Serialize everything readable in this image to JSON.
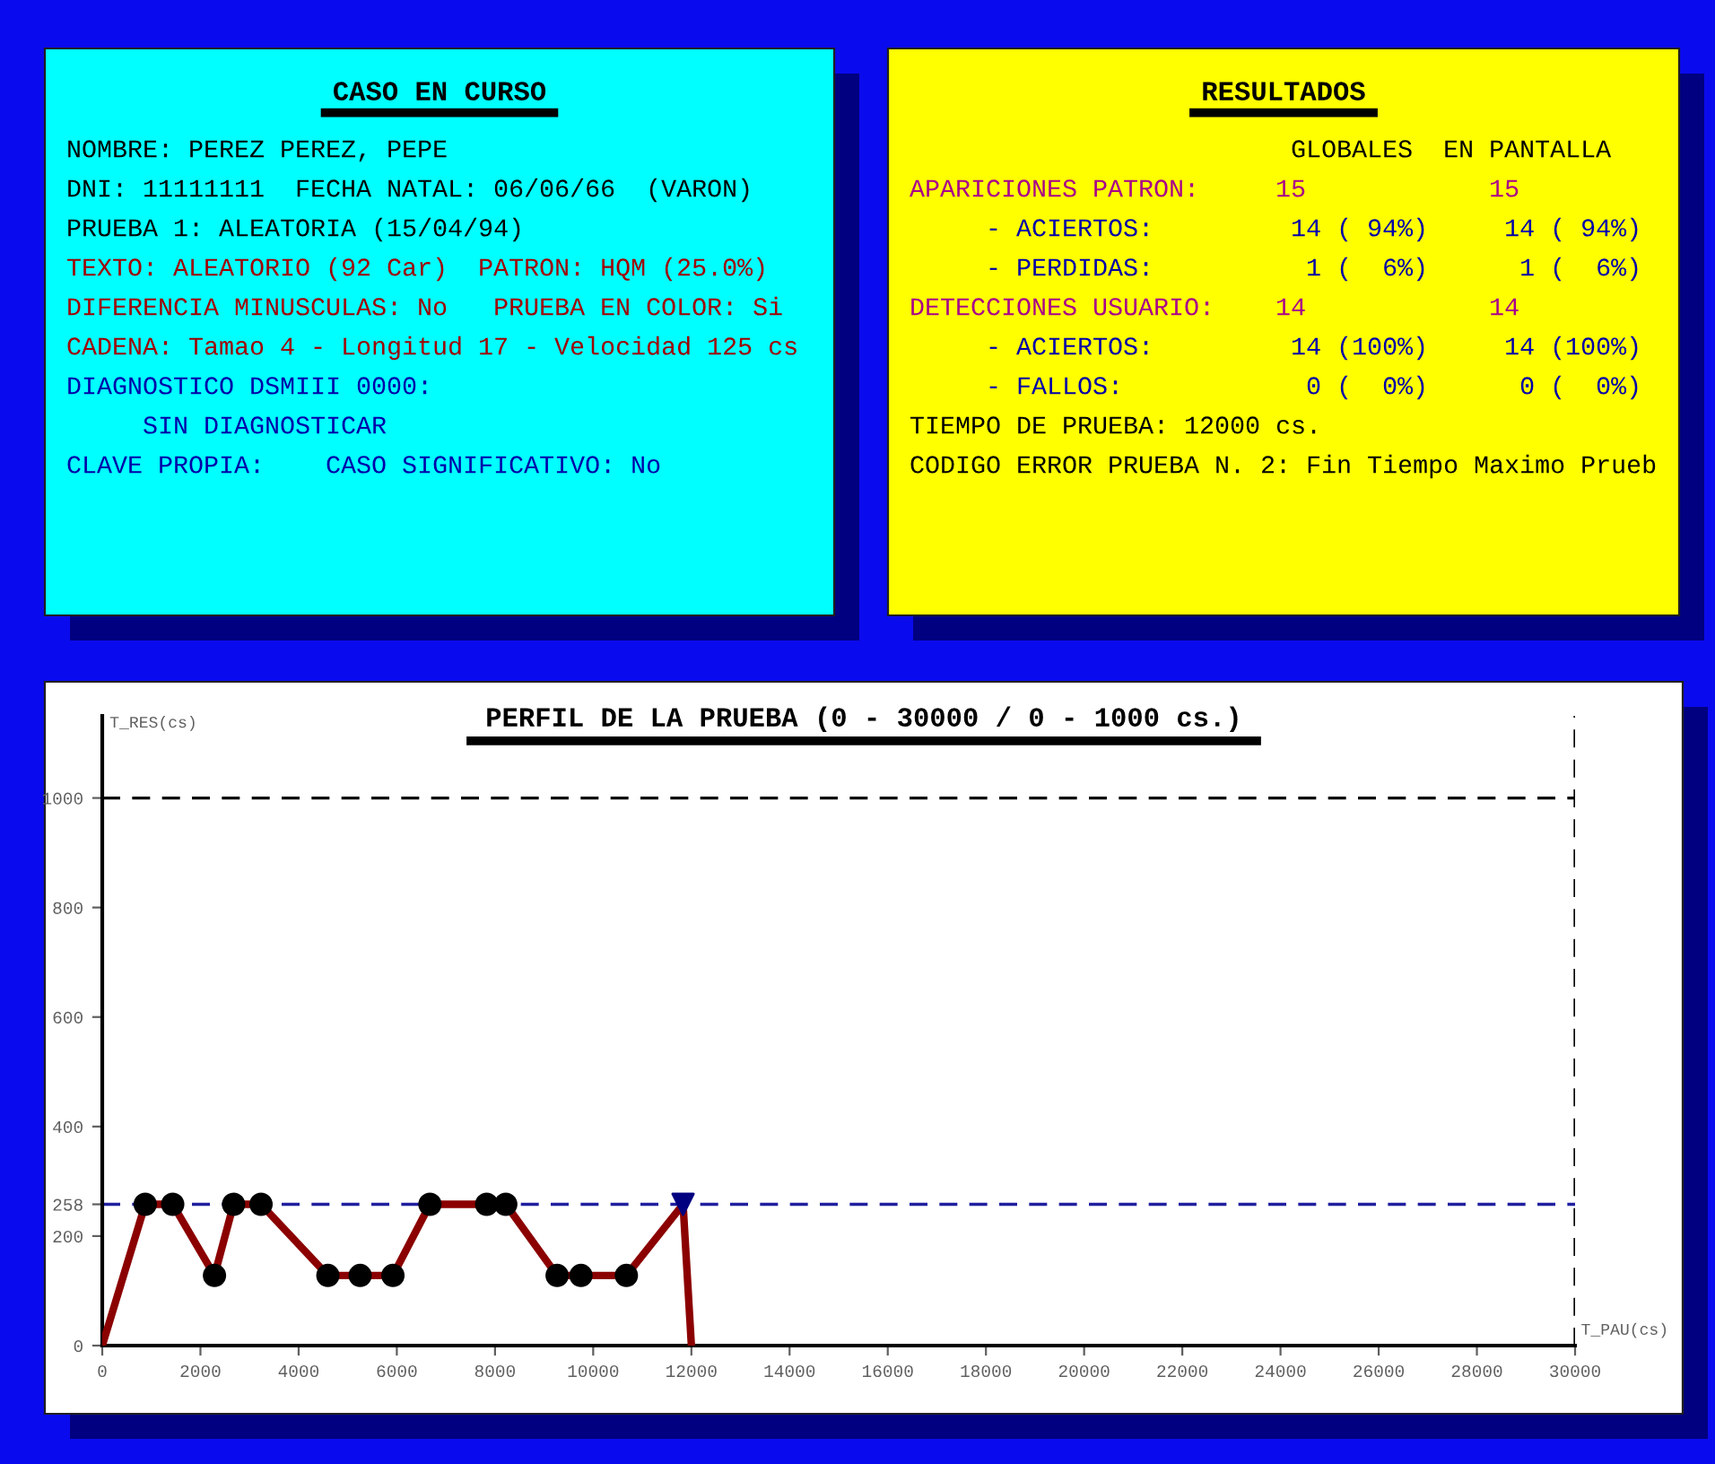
{
  "chart_data": [
    {
      "type": "other",
      "title": "CASO EN CURSO",
      "annotations": [
        "NOMBRE: PEREZ PEREZ, PEPE",
        "DNI: 11111111  FECHA NATAL: 06/06/66  (VARON)",
        "PRUEBA 1: ALEATORIA (15/04/94)",
        "TEXTO: ALEATORIO (92 Car)  PATRON: HQM (25.0%)",
        "DIFERENCIA MINUSCULAS: No   PRUEBA EN COLOR: Si",
        "CADENA: Tamao 4 - Longitud 17 - Velocidad 125 cs",
        "DIAGNOSTICO DSMIII 0000:",
        "     SIN DIAGNOSTICAR",
        "CLAVE PROPIA:    CASO SIGNIFICATIVO: No"
      ],
      "colors": [
        "#000000",
        "#000000",
        "#000000",
        "#a00000",
        "#a00000",
        "#a00000",
        "#0000a8",
        "#0000a8",
        "#0000a8"
      ]
    },
    {
      "type": "other",
      "title": "RESULTADOS",
      "annotations": [
        "                         GLOBALES  EN PANTALLA",
        "APARICIONES PATRON:     15            15",
        "     - ACIERTOS:         14 ( 94%)     14 ( 94%)",
        "     - PERDIDAS:          1 (  6%)      1 (  6%)",
        "DETECCIONES USUARIO:    14            14",
        "     - ACIERTOS:         14 (100%)     14 (100%)",
        "     - FALLOS:            0 (  0%)      0 (  0%)",
        "TIEMPO DE PRUEBA: 12000 cs.",
        "CODIGO ERROR PRUEBA N. 2: Fin Tiempo Maximo Prueb"
      ],
      "colors": [
        "#000000",
        "#a8008a",
        "#0000a8",
        "#0000a8",
        "#a8008a",
        "#0000a8",
        "#0000a8",
        "#000000",
        "#000000"
      ]
    },
    {
      "type": "line",
      "title": "PERFIL DE LA PRUEBA (0 - 30000 / 0 - 1000 cs.)",
      "xlabel": "T_PAU(cs)",
      "ylabel": "T_RES(cs)",
      "series": [
        {
          "type": "line",
          "color": "#8b0000",
          "marker": "none",
          "x": [
            0,
            875,
            1435,
            2286,
            2675,
            3234,
            4596,
            5253,
            5921,
            6675,
            7830,
            8219,
            9265,
            9751,
            10676,
            11831,
            12000
          ],
          "values": [
            0,
            258,
            258,
            128,
            258,
            258,
            128,
            128,
            128,
            258,
            258,
            258,
            128,
            128,
            128,
            258,
            0
          ]
        },
        {
          "type": "scatter",
          "color": "#000000",
          "marker": "circle",
          "x": [
            875,
            1435,
            2286,
            2675,
            3234,
            4596,
            5253,
            5921,
            6675,
            7830,
            8219,
            9265,
            9751,
            10676
          ],
          "values": [
            258,
            258,
            128,
            258,
            258,
            128,
            128,
            128,
            258,
            258,
            258,
            128,
            128,
            128
          ]
        },
        {
          "type": "scatter",
          "color": "#000080",
          "marker": "triangle",
          "x": [
            11831
          ],
          "values": [
            258
          ]
        }
      ],
      "xlim": [
        0,
        30000
      ],
      "ylim": [
        0,
        1150
      ],
      "xticks": [
        0,
        2000,
        4000,
        6000,
        8000,
        10000,
        12000,
        14000,
        16000,
        18000,
        20000,
        22000,
        24000,
        26000,
        28000,
        30000
      ],
      "yticks": [
        0,
        200,
        258,
        400,
        600,
        800,
        1000
      ],
      "ref_lines": [
        {
          "axis": "y",
          "value": 1000,
          "color": "#000000",
          "line_style": "dashed"
        },
        {
          "axis": "y",
          "value": 258,
          "color": "#2020a0",
          "line_style": "dashed"
        },
        {
          "axis": "x",
          "value": 30000,
          "color": "#000000",
          "line_style": "dashed"
        }
      ],
      "grid": false,
      "legend": false
    }
  ]
}
